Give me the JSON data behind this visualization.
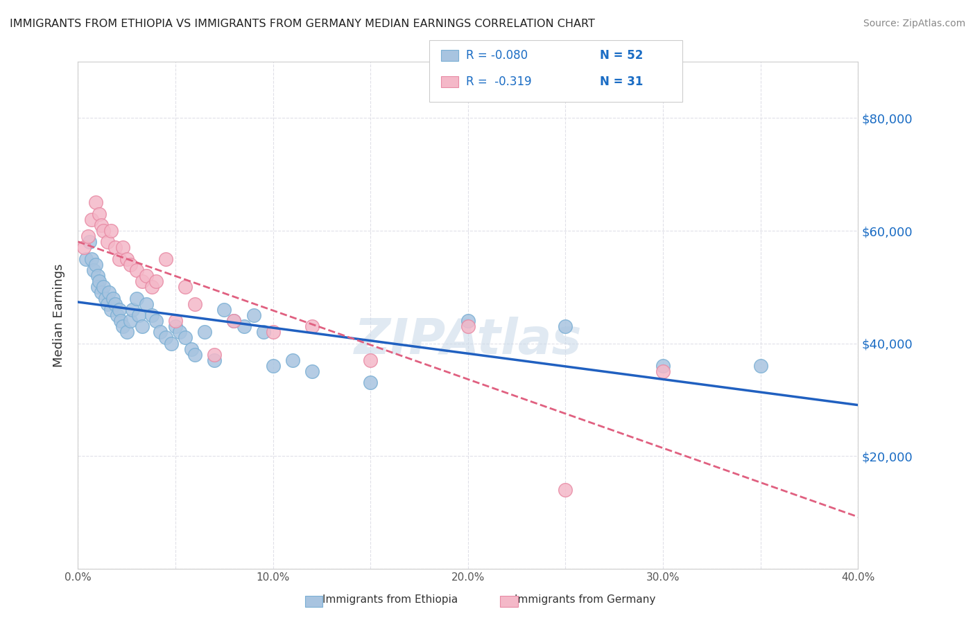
{
  "title": "IMMIGRANTS FROM ETHIOPIA VS IMMIGRANTS FROM GERMANY MEDIAN EARNINGS CORRELATION CHART",
  "source": "Source: ZipAtlas.com",
  "xlabel": "",
  "ylabel": "Median Earnings",
  "xlim": [
    0.0,
    0.4
  ],
  "ylim": [
    0,
    90000
  ],
  "xticks": [
    0.0,
    0.05,
    0.1,
    0.15,
    0.2,
    0.25,
    0.3,
    0.35,
    0.4
  ],
  "xticklabels": [
    "0.0%",
    "",
    "10.0%",
    "",
    "20.0%",
    "",
    "30.0%",
    "",
    "40.0%"
  ],
  "yticks_right": [
    0,
    20000,
    40000,
    60000,
    80000
  ],
  "ytick_labels_right": [
    "",
    "$20,000",
    "$40,000",
    "$60,000",
    "$80,000"
  ],
  "watermark": "ZIPAtlas",
  "legend_R1": "R = -0.080",
  "legend_N1": "N = 52",
  "legend_R2": "R =  -0.319",
  "legend_N2": "N = 31",
  "ethiopia_color": "#a8c4e0",
  "ethiopia_edge": "#7aafd4",
  "germany_color": "#f4b8c8",
  "germany_edge": "#e88aa4",
  "line_blue": "#2060c0",
  "line_pink": "#e06080",
  "ethiopia_x": [
    0.004,
    0.006,
    0.007,
    0.008,
    0.009,
    0.01,
    0.01,
    0.011,
    0.012,
    0.013,
    0.014,
    0.015,
    0.016,
    0.017,
    0.018,
    0.019,
    0.02,
    0.021,
    0.022,
    0.023,
    0.025,
    0.027,
    0.028,
    0.03,
    0.031,
    0.033,
    0.035,
    0.038,
    0.04,
    0.042,
    0.045,
    0.048,
    0.05,
    0.052,
    0.055,
    0.058,
    0.06,
    0.065,
    0.07,
    0.075,
    0.08,
    0.085,
    0.09,
    0.095,
    0.1,
    0.11,
    0.12,
    0.15,
    0.2,
    0.25,
    0.3,
    0.35
  ],
  "ethiopia_y": [
    55000,
    58000,
    55000,
    53000,
    54000,
    52000,
    50000,
    51000,
    49000,
    50000,
    48000,
    47000,
    49000,
    46000,
    48000,
    47000,
    45000,
    46000,
    44000,
    43000,
    42000,
    44000,
    46000,
    48000,
    45000,
    43000,
    47000,
    45000,
    44000,
    42000,
    41000,
    40000,
    43000,
    42000,
    41000,
    39000,
    38000,
    42000,
    37000,
    46000,
    44000,
    43000,
    45000,
    42000,
    36000,
    37000,
    35000,
    33000,
    44000,
    43000,
    36000,
    36000
  ],
  "germany_x": [
    0.003,
    0.005,
    0.007,
    0.009,
    0.011,
    0.012,
    0.013,
    0.015,
    0.017,
    0.019,
    0.021,
    0.023,
    0.025,
    0.027,
    0.03,
    0.033,
    0.035,
    0.038,
    0.04,
    0.045,
    0.05,
    0.055,
    0.06,
    0.07,
    0.08,
    0.1,
    0.12,
    0.15,
    0.2,
    0.3,
    0.25
  ],
  "germany_y": [
    57000,
    59000,
    62000,
    65000,
    63000,
    61000,
    60000,
    58000,
    60000,
    57000,
    55000,
    57000,
    55000,
    54000,
    53000,
    51000,
    52000,
    50000,
    51000,
    55000,
    44000,
    50000,
    47000,
    38000,
    44000,
    42000,
    43000,
    37000,
    43000,
    35000,
    14000
  ],
  "ethiopia_R": -0.08,
  "ethiopia_N": 52,
  "germany_R": -0.319,
  "germany_N": 31,
  "background_color": "#ffffff",
  "grid_color": "#e0e0e8"
}
